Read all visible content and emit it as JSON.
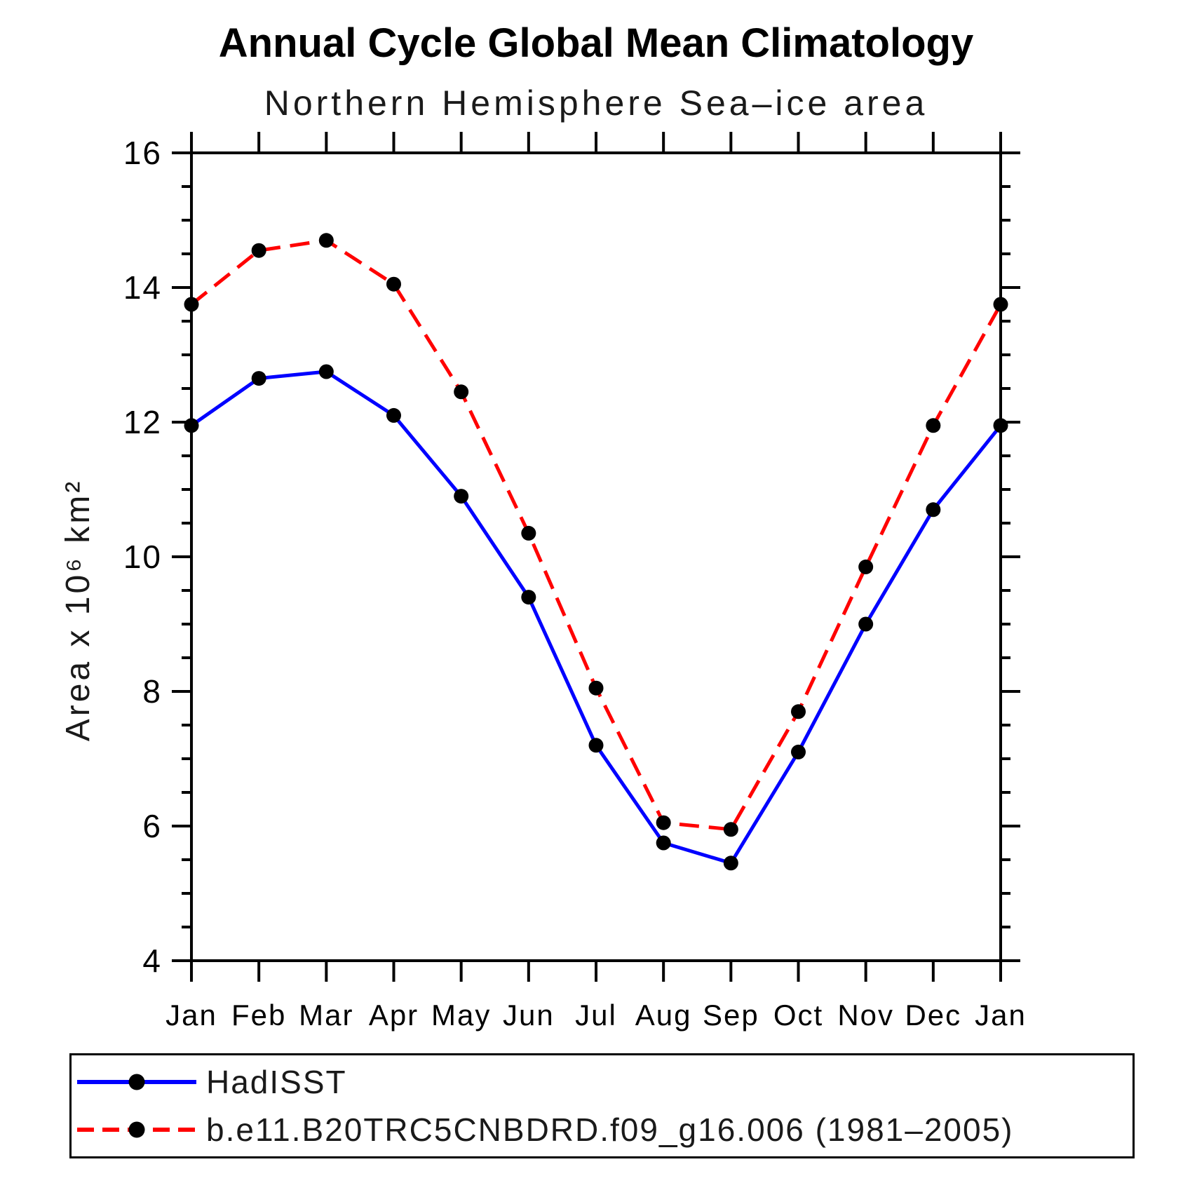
{
  "header": {
    "title": "Annual Cycle Global Mean Climatology",
    "subtitle": "Northern Hemisphere Sea–ice area"
  },
  "chart_data": {
    "type": "line",
    "x": [
      "Jan",
      "Feb",
      "Mar",
      "Apr",
      "May",
      "Jun",
      "Jul",
      "Aug",
      "Sep",
      "Oct",
      "Nov",
      "Dec",
      "Jan"
    ],
    "xlabel": "",
    "ylabel": "Area x 10⁶ km²",
    "ylim": [
      4,
      16
    ],
    "ytick_major": [
      4,
      6,
      8,
      10,
      12,
      14,
      16
    ],
    "ytick_minor_step": 0.5,
    "grid": false,
    "legend_position": "bottom-box",
    "series": [
      {
        "name": "HadISST",
        "color": "#0000ff",
        "line_style": "solid",
        "marker": "circle",
        "marker_color": "#000000",
        "values": [
          11.95,
          12.65,
          12.75,
          12.1,
          10.9,
          9.4,
          7.2,
          5.75,
          5.45,
          7.1,
          9.0,
          10.7,
          11.95
        ]
      },
      {
        "name": "b.e11.B20TRC5CNBDRD.f09_g16.006 (1981–2005)",
        "color": "#ff0000",
        "line_style": "dashed",
        "marker": "circle",
        "marker_color": "#000000",
        "values": [
          13.75,
          14.55,
          14.7,
          14.05,
          12.45,
          10.35,
          8.05,
          6.05,
          5.95,
          7.7,
          9.85,
          11.95,
          13.75
        ]
      }
    ]
  },
  "colors": {
    "axis": "#000000",
    "background": "#ffffff",
    "hadisst_line": "#0000ff",
    "model_line": "#ff0000",
    "marker": "#000000"
  }
}
